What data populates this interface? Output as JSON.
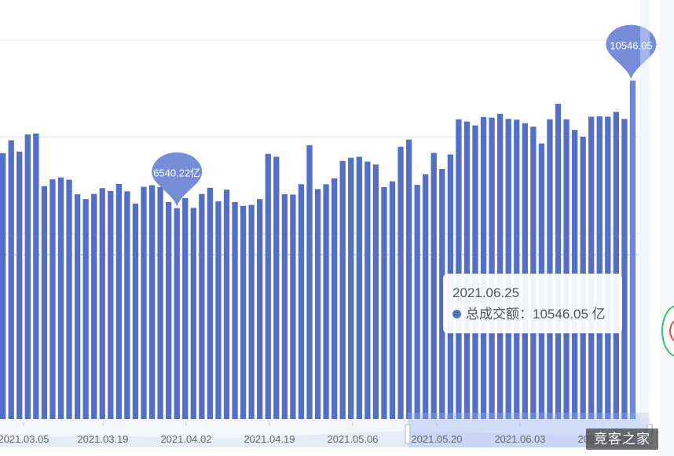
{
  "chart_data": {
    "type": "bar",
    "series": [
      {
        "name": "总成交额",
        "color": "#5470c6",
        "unit": "亿",
        "values": [
          8300,
          8700,
          8350,
          8880,
          8910,
          7280,
          7490,
          7550,
          7480,
          7030,
          6880,
          7040,
          7220,
          7130,
          7350,
          7120,
          6740,
          7260,
          7310,
          7250,
          6790,
          6600,
          6910,
          6610,
          7040,
          7230,
          6810,
          7170,
          6790,
          6670,
          6700,
          6880,
          8280,
          8190,
          7030,
          7020,
          7340,
          8550,
          7190,
          7340,
          7520,
          8060,
          8160,
          8190,
          8040,
          7950,
          7250,
          7430,
          8500,
          8720,
          7320,
          7650,
          8310,
          7810,
          8260,
          9350,
          9280,
          9160,
          9420,
          9400,
          9520,
          9360,
          9340,
          9230,
          9120,
          8600,
          9350,
          9830,
          9350,
          9020,
          8810,
          9430,
          9440,
          9430,
          9580,
          9360,
          10546.05
        ]
      }
    ],
    "x_tick_labels": [
      "2021.03.05",
      "2021.03.19",
      "2021.04.02",
      "2021.04.19",
      "2021.05.06",
      "2021.05.20",
      "2021.06.03",
      "2021.06.17"
    ],
    "markers": [
      {
        "kind": "min",
        "label": "6540.22亿"
      },
      {
        "kind": "max",
        "label": "10546.05"
      }
    ],
    "grid": true
  },
  "tooltip": {
    "date": "2021.06.25",
    "series_label": "总成交额：",
    "value": "10546.05 亿",
    "dot_color": "#5470c6"
  },
  "watermark": "竞客之家"
}
